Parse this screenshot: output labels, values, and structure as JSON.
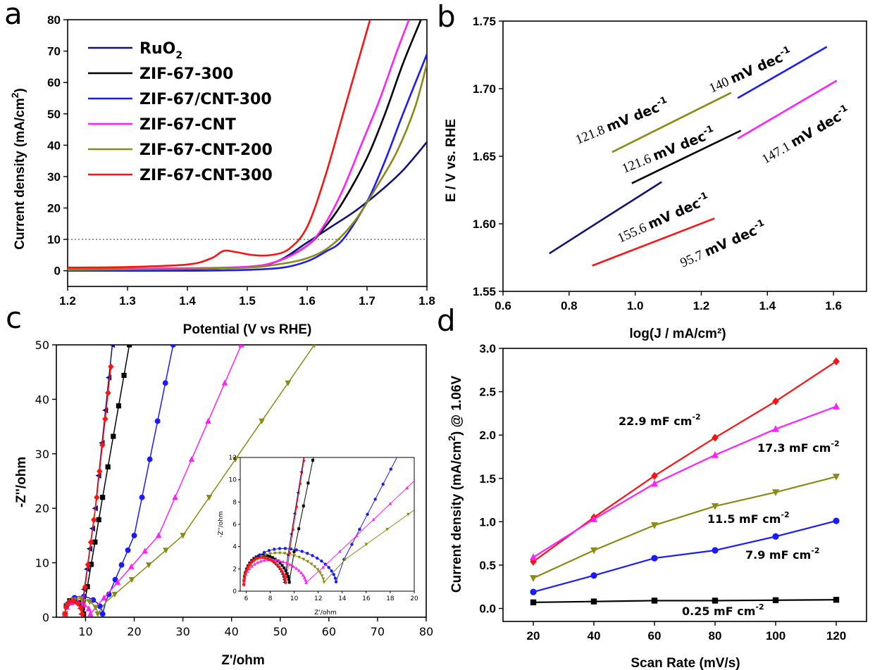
{
  "colors": {
    "RuO2": "#0f1278",
    "ZIF-67-300": "#000000",
    "ZIF-67/CNT-300": "#1a1aff",
    "ZIF-67-CNT": "#ff1fff",
    "ZIF-67-CNT-200": "#8a8a14",
    "ZIF-67-CNT-300": "#ff1111"
  },
  "chart_data": [
    {
      "panel": "a",
      "type": "line",
      "xlabel": "Potential (V vs RHE)",
      "ylabel": "Current density (mA/cm²)",
      "xlim": [
        1.2,
        1.8
      ],
      "ylim": [
        -5,
        80
      ],
      "xticks": [
        "1.2",
        "1.3",
        "1.4",
        "1.5",
        "1.6",
        "1.7",
        "1.8"
      ],
      "yticks": [
        "0",
        "10",
        "20",
        "30",
        "40",
        "50",
        "60",
        "70",
        "80"
      ],
      "reference_line_y": 10,
      "legend": [
        "RuO₂",
        "ZIF-67-300",
        "ZIF-67/CNT-300",
        "ZIF-67-CNT",
        "ZIF-67-CNT-200",
        "ZIF-67-CNT-300"
      ],
      "series": [
        {
          "name": "RuO₂",
          "x": [
            1.2,
            1.3,
            1.4,
            1.5,
            1.55,
            1.6,
            1.64,
            1.68,
            1.72,
            1.76,
            1.8
          ],
          "y": [
            0.3,
            0.4,
            0.6,
            1.2,
            3,
            9,
            14,
            19,
            25,
            32,
            41
          ]
        },
        {
          "name": "ZIF-67-300",
          "x": [
            1.2,
            1.4,
            1.5,
            1.55,
            1.6,
            1.63,
            1.66,
            1.7,
            1.73,
            1.76,
            1.79
          ],
          "y": [
            0.2,
            0.5,
            1.2,
            3,
            8,
            14,
            22,
            36,
            50,
            66,
            80
          ]
        },
        {
          "name": "ZIF-67/CNT-300",
          "x": [
            1.2,
            1.4,
            1.5,
            1.56,
            1.6,
            1.63,
            1.66,
            1.7,
            1.73,
            1.76,
            1.8
          ],
          "y": [
            0,
            0,
            0.3,
            1,
            3,
            6,
            10,
            22,
            35,
            50,
            69
          ]
        },
        {
          "name": "ZIF-67-CNT",
          "x": [
            1.2,
            1.4,
            1.5,
            1.55,
            1.6,
            1.63,
            1.66,
            1.69,
            1.72,
            1.75,
            1.77
          ],
          "y": [
            0.5,
            0.8,
            1.3,
            3,
            8,
            15,
            26,
            40,
            54,
            70,
            80
          ]
        },
        {
          "name": "ZIF-67-CNT-200",
          "x": [
            1.2,
            1.4,
            1.5,
            1.55,
            1.6,
            1.64,
            1.68,
            1.72,
            1.75,
            1.78,
            1.8
          ],
          "y": [
            0.3,
            0.6,
            1,
            2,
            4,
            8,
            16,
            28,
            38,
            52,
            66
          ]
        },
        {
          "name": "ZIF-67-CNT-300",
          "x": [
            1.2,
            1.3,
            1.4,
            1.44,
            1.46,
            1.48,
            1.51,
            1.54,
            1.57,
            1.6,
            1.63,
            1.66,
            1.69,
            1.705
          ],
          "y": [
            1,
            1.2,
            2,
            4,
            6.3,
            6,
            5,
            5,
            7,
            14,
            30,
            50,
            70,
            80
          ]
        }
      ]
    },
    {
      "panel": "b",
      "type": "line",
      "xlabel": "log(J / mA/cm²)",
      "ylabel": "E / V vs. RHE",
      "xlim": [
        0.6,
        1.7
      ],
      "ylim": [
        1.55,
        1.75
      ],
      "xticks": [
        "0.6",
        "0.8",
        "1.0",
        "1.2",
        "1.4",
        "1.6"
      ],
      "yticks": [
        "1.55",
        "1.60",
        "1.65",
        "1.70",
        "1.75"
      ],
      "series": [
        {
          "name": "RuO₂",
          "slope_label": "155.6",
          "unit": "mV dec",
          "exp": "-1",
          "x": [
            0.74,
            0.9,
            1.08
          ],
          "y": [
            1.578,
            1.603,
            1.631
          ]
        },
        {
          "name": "ZIF-67-300",
          "slope_label": "121.6",
          "unit": "mV dec",
          "exp": "-1",
          "x": [
            0.99,
            1.32
          ],
          "y": [
            1.63,
            1.669
          ]
        },
        {
          "name": "ZIF-67/CNT-300",
          "slope_label": "140",
          "unit": "mV dec",
          "exp": "-1",
          "x": [
            1.31,
            1.58
          ],
          "y": [
            1.693,
            1.731
          ]
        },
        {
          "name": "ZIF-67-CNT",
          "slope_label": "147.1",
          "unit": "mV dec",
          "exp": "-1",
          "x": [
            1.31,
            1.61
          ],
          "y": [
            1.663,
            1.706
          ]
        },
        {
          "name": "ZIF-67-CNT-200",
          "slope_label": "121.8",
          "unit": "mV dec",
          "exp": "-1",
          "x": [
            0.93,
            1.29
          ],
          "y": [
            1.653,
            1.697
          ]
        },
        {
          "name": "ZIF-67-CNT-300",
          "slope_label": "95.7",
          "unit": "mV dec",
          "exp": "-1",
          "x": [
            0.87,
            1.24
          ],
          "y": [
            1.569,
            1.604
          ]
        }
      ]
    },
    {
      "panel": "c",
      "type": "scatter",
      "xlabel": "Z'/ohm",
      "ylabel": "-Z''/ohm",
      "xlim": [
        4,
        80
      ],
      "ylim": [
        0,
        50
      ],
      "xticks": [
        "10",
        "20",
        "30",
        "40",
        "50",
        "60",
        "70",
        "80"
      ],
      "yticks": [
        "0",
        "10",
        "20",
        "30",
        "40",
        "50"
      ],
      "inset": {
        "xlabel": "Z'/ohm",
        "ylabel": "-Z''/ohm",
        "xlim": [
          5.5,
          20
        ],
        "ylim": [
          0,
          12
        ],
        "xticks": [
          "6",
          "8",
          "10",
          "12",
          "14",
          "16",
          "18",
          "20"
        ],
        "yticks": [
          "0",
          "2",
          "4",
          "6",
          "8",
          "10",
          "12"
        ]
      },
      "series": [
        {
          "name": "RuO₂",
          "marker": "triangle-left",
          "semicircle": [
            5.8,
            9.2,
            2.4
          ],
          "tail": [
            [
              9.2,
              1.4
            ],
            [
              12,
              20
            ],
            [
              15.5,
              50
            ]
          ]
        },
        {
          "name": "ZIF-67-300",
          "marker": "square",
          "semicircle": [
            5.8,
            9.6,
            2.6
          ],
          "tail": [
            [
              9.6,
              1.5
            ],
            [
              13.5,
              22
            ],
            [
              19,
              50
            ]
          ]
        },
        {
          "name": "ZIF-67/CNT-300",
          "marker": "circle",
          "semicircle": [
            5.8,
            13.5,
            3.2
          ],
          "tail": [
            [
              13.5,
              1.5
            ],
            [
              20,
              15
            ],
            [
              28,
              50
            ]
          ]
        },
        {
          "name": "ZIF-67-CNT",
          "marker": "triangle-up",
          "semicircle": [
            5.8,
            11,
            2.2
          ],
          "tail": [
            [
              11,
              0.7
            ],
            [
              25,
              15
            ],
            [
              42,
              50
            ]
          ]
        },
        {
          "name": "ZIF-67-CNT-200",
          "marker": "triangle-down",
          "semicircle": [
            5.8,
            12.5,
            2.8
          ],
          "tail": [
            [
              12.5,
              1.5
            ],
            [
              30,
              15
            ],
            [
              57,
              50
            ]
          ]
        },
        {
          "name": "ZIF-67-CNT-300",
          "marker": "diamond",
          "semicircle": [
            5.8,
            9.3,
            2.4
          ],
          "tail": [
            [
              9.3,
              1.4
            ],
            [
              12.3,
              22
            ],
            [
              15.2,
              46
            ]
          ]
        }
      ]
    },
    {
      "panel": "d",
      "type": "line",
      "xlabel": "Scan Rate (mV/s)",
      "ylabel": "Current density (mA/cm²) @ 1.06V",
      "xlim": [
        10,
        130
      ],
      "ylim": [
        -0.15,
        3.0
      ],
      "x": [
        20,
        40,
        60,
        80,
        100,
        120
      ],
      "xticks": [
        "20",
        "40",
        "60",
        "80",
        "100",
        "120"
      ],
      "yticks": [
        "0.0",
        "0.5",
        "1.0",
        "1.5",
        "2.0",
        "2.5",
        "3.0"
      ],
      "series": [
        {
          "name": "ZIF-67-CNT-300",
          "marker": "diamond",
          "values": [
            0.54,
            1.05,
            1.53,
            1.97,
            2.39,
            2.85
          ],
          "label": "22.9 mF cm",
          "exp": "-2"
        },
        {
          "name": "ZIF-67-CNT",
          "marker": "triangle-up",
          "values": [
            0.59,
            1.03,
            1.44,
            1.77,
            2.07,
            2.33
          ],
          "label": "17.3 mF cm",
          "exp": "-2"
        },
        {
          "name": "ZIF-67-CNT-200",
          "marker": "triangle-down",
          "values": [
            0.35,
            0.67,
            0.96,
            1.18,
            1.34,
            1.52
          ],
          "label": "11.5 mF cm",
          "exp": "-2"
        },
        {
          "name": "ZIF-67/CNT-300",
          "marker": "circle",
          "values": [
            0.19,
            0.38,
            0.58,
            0.67,
            0.83,
            1.01
          ],
          "label": "7.9 mF cm",
          "exp": "-2"
        },
        {
          "name": "ZIF-67-300",
          "marker": "square",
          "values": [
            0.07,
            0.08,
            0.09,
            0.09,
            0.095,
            0.1
          ],
          "label": "0.25 mF cm",
          "exp": "-2"
        }
      ]
    }
  ]
}
